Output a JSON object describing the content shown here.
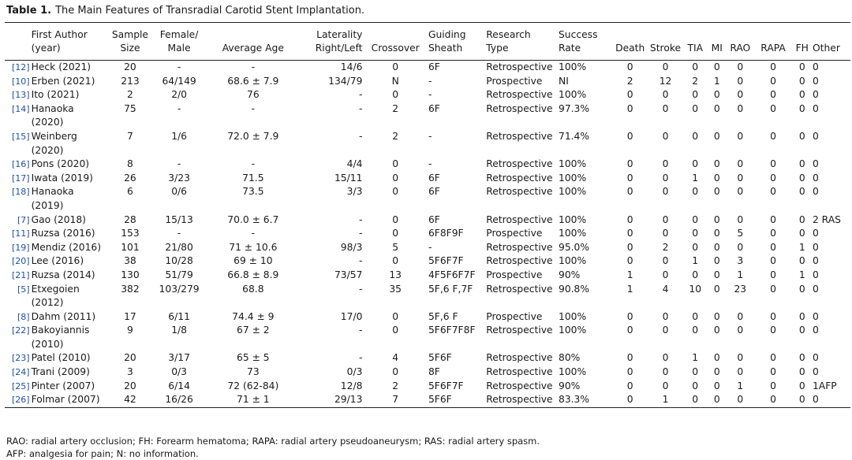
{
  "title": {
    "label": "Table 1.",
    "text": "The Main Features of Transradial Carotid Stent Implantation."
  },
  "table": {
    "header": [
      "",
      "First Author\n(year)",
      "Sample\nSize",
      "Female/\nMale",
      "Average Age",
      "Laterality\nRight/Left",
      "Crossover",
      "Guiding\nSheath",
      "Research\nType",
      "Success\nRate",
      "Death",
      "Stroke",
      "TIA",
      "MI",
      "RAO",
      "RAPA",
      "FH",
      "Other"
    ],
    "rows": [
      [
        "[12]",
        "Heck (2021)",
        "20",
        "-",
        "-",
        "14/6",
        "0",
        "6F",
        "Retrospective",
        "100%",
        "0",
        "0",
        "0",
        "0",
        "0",
        "0",
        "0",
        "0"
      ],
      [
        "[10]",
        "Erben (2021)",
        "213",
        "64/149",
        "68.6 ± 7.9",
        "134/79",
        "N",
        "-",
        "Prospective",
        "NI",
        "2",
        "12",
        "2",
        "1",
        "0",
        "0",
        "0",
        "0"
      ],
      [
        "[13]",
        "Ito (2021)",
        "2",
        "2/0",
        "76",
        "-",
        "0",
        "-",
        "Retrospective",
        "100%",
        "0",
        "0",
        "0",
        "0",
        "0",
        "0",
        "0",
        "0"
      ],
      [
        "[14]",
        "Hanaoka\n(2020)",
        "75",
        "-",
        "-",
        "-",
        "2",
        "6F",
        "Retrospective",
        "97.3%",
        "0",
        "0",
        "0",
        "0",
        "0",
        "0",
        "0",
        "0"
      ],
      [
        "[15]",
        "Weinberg\n(2020)",
        "7",
        "1/6",
        "72.0 ± 7.9",
        "-",
        "2",
        "-",
        "Retrospective",
        "71.4%",
        "0",
        "0",
        "0",
        "0",
        "0",
        "0",
        "0",
        "0"
      ],
      [
        "[16]",
        "Pons (2020)",
        "8",
        "-",
        "-",
        "4/4",
        "0",
        "-",
        "Retrospective",
        "100%",
        "0",
        "0",
        "0",
        "0",
        "0",
        "0",
        "0",
        "0"
      ],
      [
        "[17]",
        "Iwata (2019)",
        "26",
        "3/23",
        "71.5",
        "15/11",
        "0",
        "6F",
        "Retrospective",
        "100%",
        "0",
        "0",
        "1",
        "0",
        "0",
        "0",
        "0",
        "0"
      ],
      [
        "[18]",
        "Hanaoka\n(2019)",
        "6",
        "0/6",
        "73.5",
        "3/3",
        "0",
        "6F",
        "Retrospective",
        "100%",
        "0",
        "0",
        "0",
        "0",
        "0",
        "0",
        "0",
        "0"
      ],
      [
        "[7]",
        "Gao (2018)",
        "28",
        "15/13",
        "70.0 ± 6.7",
        "-",
        "0",
        "6F",
        "Retrospective",
        "100%",
        "0",
        "0",
        "0",
        "0",
        "0",
        "0",
        "0",
        "2 RAS"
      ],
      [
        "[11]",
        "Ruzsa (2016)",
        "153",
        "-",
        "-",
        "-",
        "0",
        "6F8F9F",
        "Prospective",
        "100%",
        "0",
        "0",
        "0",
        "0",
        "5",
        "0",
        "0",
        "0"
      ],
      [
        "[19]",
        "Mendiz (2016)",
        "101",
        "21/80",
        "71 ± 10.6",
        "98/3",
        "5",
        "-",
        "Retrospective",
        "95.0%",
        "0",
        "2",
        "0",
        "0",
        "0",
        "0",
        "1",
        "0"
      ],
      [
        "[20]",
        "Lee (2016)",
        "38",
        "10/28",
        "69 ± 10",
        "-",
        "0",
        "5F6F7F",
        "Retrospective",
        "100%",
        "0",
        "0",
        "1",
        "0",
        "3",
        "0",
        "0",
        "0"
      ],
      [
        "[21]",
        "Ruzsa (2014)",
        "130",
        "51/79",
        "66.8 ± 8.9",
        "73/57",
        "13",
        "4F5F6F7F",
        "Prospective",
        "90%",
        "1",
        "0",
        "0",
        "0",
        "1",
        "0",
        "1",
        "0"
      ],
      [
        "[5]",
        "Etxegoien\n(2012)",
        "382",
        "103/279",
        "68.8",
        "-",
        "35",
        "5F,6 F,7F",
        "Retrospective",
        "90.8%",
        "1",
        "4",
        "10",
        "0",
        "23",
        "0",
        "0",
        "0"
      ],
      [
        "[8]",
        "Dahm (2011)",
        "17",
        "6/11",
        "74.4 ± 9",
        "17/0",
        "0",
        "5F,6 F",
        "Prospective",
        "100%",
        "0",
        "0",
        "0",
        "0",
        "0",
        "0",
        "0",
        "0"
      ],
      [
        "[22]",
        "Bakoyiannis\n(2010)",
        "9",
        "1/8",
        "67 ± 2",
        "-",
        "0",
        "5F6F7F8F",
        "Retrospective",
        "100%",
        "0",
        "0",
        "0",
        "0",
        "0",
        "0",
        "0",
        "0"
      ],
      [
        "[23]",
        "Patel (2010)",
        "20",
        "3/17",
        "65 ± 5",
        "-",
        "4",
        "5F6F",
        "Retrospective",
        "80%",
        "0",
        "0",
        "1",
        "0",
        "0",
        "0",
        "0",
        "0"
      ],
      [
        "[24]",
        "Trani (2009)",
        "3",
        "0/3",
        "73",
        "0/3",
        "0",
        "8F",
        "Retrospective",
        "100%",
        "0",
        "0",
        "0",
        "0",
        "0",
        "0",
        "0",
        "0"
      ],
      [
        "[25]",
        "Pinter (2007)",
        "20",
        "6/14",
        "72 (62-84)",
        "12/8",
        "2",
        "5F6F7F",
        "Retrospective",
        "90%",
        "0",
        "0",
        "0",
        "0",
        "1",
        "0",
        "0",
        "1AFP"
      ],
      [
        "[26]",
        "Folmar (2007)",
        "42",
        "16/26",
        "71 ± 1",
        "29/13",
        "7",
        "5F6F",
        "Retrospective",
        "83.3%",
        "0",
        "1",
        "0",
        "0",
        "0",
        "0",
        "0",
        "0"
      ]
    ]
  },
  "footnotes": [
    "RAO: radial artery occlusion; FH: Forearm hematoma; RAPA: radial artery pseudoaneurysm; RAS: radial artery spasm.",
    "AFP: analgesia for pain; N: no information."
  ]
}
